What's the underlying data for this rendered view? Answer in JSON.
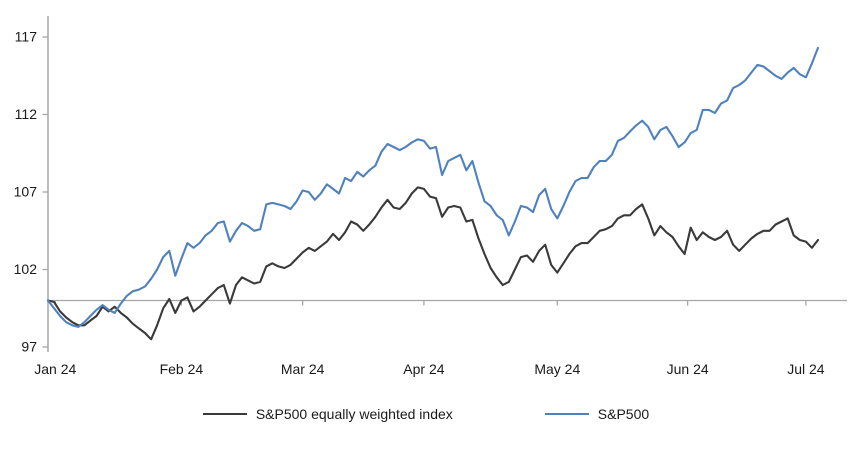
{
  "chart_data": {
    "type": "line",
    "title": "",
    "xlabel": "",
    "ylabel": "",
    "x_unit": "daily observations, Jan 2024 - early Jul 2024, indexed to 100",
    "y_ticks": [
      97,
      102,
      107,
      112,
      117
    ],
    "ylim": [
      97,
      117
    ],
    "baseline_value": 100,
    "grid": "off",
    "legend_position": "bottom",
    "colors": {
      "axis": "#a6a6a6",
      "baseline": "#a6a6a6",
      "text": "#1a1a1a",
      "equal_weight_line": "#3a3a3a",
      "sp500_line": "#4f81bd"
    },
    "x_ticks": [
      {
        "label": "Jan 24",
        "pos": 1.2
      },
      {
        "label": "Feb 24",
        "pos": 22
      },
      {
        "label": "Mar 24",
        "pos": 42
      },
      {
        "label": "Apr 24",
        "pos": 62
      },
      {
        "label": "May 24",
        "pos": 84
      },
      {
        "label": "Jun 24",
        "pos": 105.5
      },
      {
        "label": "Jul 24",
        "pos": 125
      }
    ],
    "series": [
      {
        "name": "S&P500 equally weighted index",
        "color": "#3a3a3a",
        "values": [
          100.0,
          99.9,
          99.3,
          98.9,
          98.6,
          98.4,
          98.4,
          98.7,
          99.0,
          99.6,
          99.3,
          99.6,
          99.2,
          98.9,
          98.5,
          98.2,
          97.9,
          97.5,
          98.4,
          99.5,
          100.1,
          99.2,
          100.0,
          100.2,
          99.3,
          99.6,
          100.0,
          100.4,
          100.8,
          101.0,
          99.8,
          101.0,
          101.5,
          101.3,
          101.1,
          101.2,
          102.2,
          102.4,
          102.2,
          102.1,
          102.3,
          102.7,
          103.1,
          103.4,
          103.2,
          103.5,
          103.8,
          104.3,
          103.9,
          104.4,
          105.1,
          104.9,
          104.5,
          104.9,
          105.4,
          106.0,
          106.5,
          106.0,
          105.9,
          106.3,
          106.9,
          107.3,
          107.2,
          106.7,
          106.6,
          105.4,
          106.0,
          106.1,
          106.0,
          105.1,
          105.2,
          104.0,
          103.0,
          102.1,
          101.5,
          101.0,
          101.2,
          102.0,
          102.8,
          102.9,
          102.5,
          103.2,
          103.6,
          102.3,
          101.8,
          102.4,
          103.0,
          103.5,
          103.7,
          103.7,
          104.1,
          104.5,
          104.6,
          104.8,
          105.3,
          105.5,
          105.5,
          105.9,
          106.2,
          105.3,
          104.2,
          104.8,
          104.4,
          104.1,
          103.5,
          103.0,
          104.7,
          103.9,
          104.4,
          104.1,
          103.9,
          104.1,
          104.5,
          103.6,
          103.2,
          103.6,
          104.0,
          104.3,
          104.5,
          104.5,
          104.9,
          105.1,
          105.3,
          104.2,
          103.9,
          103.8,
          103.4,
          103.9
        ]
      },
      {
        "name": "S&P500",
        "color": "#4f81bd",
        "values": [
          100.0,
          99.5,
          99.0,
          98.6,
          98.4,
          98.3,
          98.6,
          99.0,
          99.4,
          99.7,
          99.4,
          99.2,
          99.8,
          100.3,
          100.6,
          100.7,
          100.9,
          101.4,
          102.0,
          102.8,
          103.2,
          101.6,
          102.7,
          103.7,
          103.4,
          103.7,
          104.2,
          104.5,
          105.0,
          105.1,
          103.8,
          104.5,
          105.0,
          104.8,
          104.5,
          104.6,
          106.2,
          106.3,
          106.2,
          106.1,
          105.9,
          106.4,
          107.1,
          107.0,
          106.5,
          106.9,
          107.5,
          107.2,
          106.9,
          107.9,
          107.7,
          108.3,
          108.0,
          108.4,
          108.7,
          109.6,
          110.1,
          109.9,
          109.7,
          109.9,
          110.2,
          110.4,
          110.3,
          109.8,
          109.9,
          108.1,
          109.0,
          109.2,
          109.4,
          108.4,
          109.0,
          107.6,
          106.4,
          106.1,
          105.5,
          105.2,
          104.2,
          105.1,
          106.1,
          106.0,
          105.7,
          106.8,
          107.2,
          105.9,
          105.3,
          106.1,
          107.0,
          107.7,
          107.9,
          107.9,
          108.6,
          109.0,
          109.0,
          109.4,
          110.3,
          110.5,
          110.9,
          111.3,
          111.6,
          111.2,
          110.4,
          111.0,
          111.2,
          110.6,
          109.9,
          110.2,
          110.8,
          111.0,
          112.3,
          112.3,
          112.1,
          112.7,
          112.9,
          113.7,
          113.9,
          114.2,
          114.7,
          115.2,
          115.1,
          114.8,
          114.5,
          114.3,
          114.7,
          115.0,
          114.6,
          114.4,
          115.3,
          116.3
        ]
      }
    ]
  }
}
